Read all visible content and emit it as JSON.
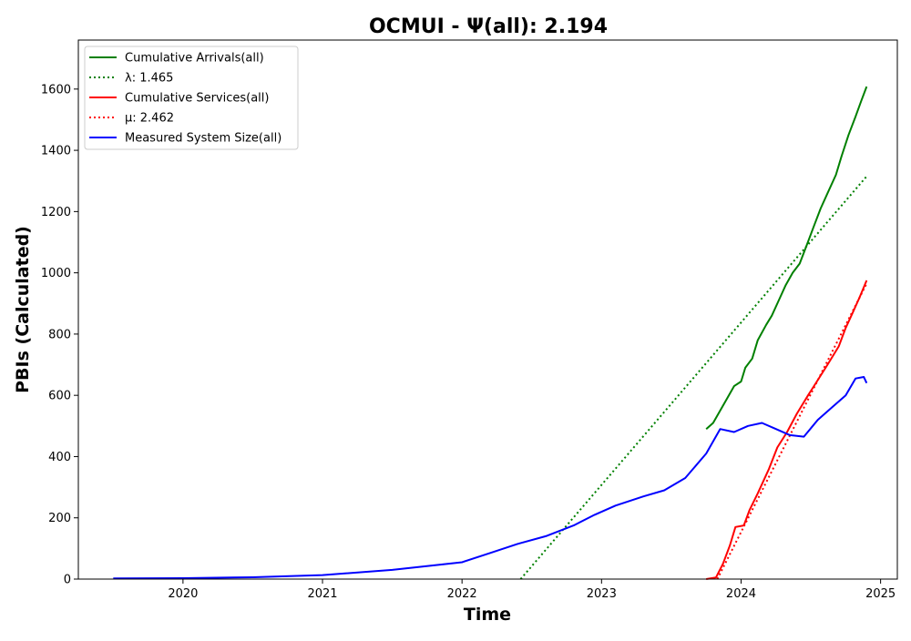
{
  "chart_data": {
    "type": "line",
    "title": "OCMUI -  Ψ(all): 2.194",
    "xlabel": "Time",
    "ylabel": "PBIs (Calculated)",
    "xlim": [
      2019.25,
      2025.12
    ],
    "ylim": [
      0,
      1760
    ],
    "x_ticks": [
      2020,
      2021,
      2022,
      2023,
      2024,
      2025
    ],
    "x_tick_labels": [
      "2020",
      "2021",
      "2022",
      "2023",
      "2024",
      "2025"
    ],
    "y_ticks": [
      0,
      200,
      400,
      600,
      800,
      1000,
      1200,
      1400,
      1600
    ],
    "y_tick_labels": [
      "0",
      "200",
      "400",
      "600",
      "800",
      "1000",
      "1200",
      "1400",
      "1600"
    ],
    "grid": false,
    "legend_position": "top-left",
    "series": [
      {
        "name": "Cumulative Arrivals(all)",
        "color": "#008000",
        "style": "solid",
        "points": [
          [
            2023.75,
            490
          ],
          [
            2023.8,
            510
          ],
          [
            2023.85,
            550
          ],
          [
            2023.9,
            590
          ],
          [
            2023.95,
            630
          ],
          [
            2024.0,
            645
          ],
          [
            2024.03,
            690
          ],
          [
            2024.08,
            720
          ],
          [
            2024.12,
            780
          ],
          [
            2024.18,
            830
          ],
          [
            2024.22,
            860
          ],
          [
            2024.28,
            920
          ],
          [
            2024.32,
            960
          ],
          [
            2024.37,
            1000
          ],
          [
            2024.42,
            1030
          ],
          [
            2024.47,
            1090
          ],
          [
            2024.52,
            1150
          ],
          [
            2024.57,
            1210
          ],
          [
            2024.62,
            1260
          ],
          [
            2024.68,
            1320
          ],
          [
            2024.72,
            1380
          ],
          [
            2024.77,
            1450
          ],
          [
            2024.82,
            1510
          ],
          [
            2024.86,
            1560
          ],
          [
            2024.9,
            1608
          ]
        ]
      },
      {
        "name": "λ: 1.465",
        "color": "#008000",
        "style": "dotted",
        "points": [
          [
            2022.42,
            0
          ],
          [
            2024.9,
            1315
          ]
        ]
      },
      {
        "name": "Cumulative Services(all)",
        "color": "#ff0000",
        "style": "solid",
        "points": [
          [
            2023.75,
            0
          ],
          [
            2023.82,
            5
          ],
          [
            2023.87,
            50
          ],
          [
            2023.92,
            110
          ],
          [
            2023.96,
            170
          ],
          [
            2024.02,
            175
          ],
          [
            2024.06,
            225
          ],
          [
            2024.12,
            280
          ],
          [
            2024.2,
            360
          ],
          [
            2024.26,
            430
          ],
          [
            2024.33,
            480
          ],
          [
            2024.4,
            540
          ],
          [
            2024.48,
            600
          ],
          [
            2024.55,
            650
          ],
          [
            2024.62,
            700
          ],
          [
            2024.7,
            760
          ],
          [
            2024.75,
            820
          ],
          [
            2024.8,
            870
          ],
          [
            2024.85,
            920
          ],
          [
            2024.9,
            975
          ]
        ]
      },
      {
        "name": "μ: 2.462",
        "color": "#ff0000",
        "style": "dotted",
        "points": [
          [
            2023.83,
            0
          ],
          [
            2024.9,
            965
          ]
        ]
      },
      {
        "name": "Measured System Size(all)",
        "color": "#0000ff",
        "style": "solid",
        "points": [
          [
            2019.5,
            2
          ],
          [
            2020.0,
            3
          ],
          [
            2020.5,
            6
          ],
          [
            2021.0,
            13
          ],
          [
            2021.5,
            30
          ],
          [
            2021.8,
            45
          ],
          [
            2022.0,
            55
          ],
          [
            2022.2,
            85
          ],
          [
            2022.4,
            115
          ],
          [
            2022.6,
            140
          ],
          [
            2022.8,
            175
          ],
          [
            2022.95,
            210
          ],
          [
            2023.1,
            240
          ],
          [
            2023.3,
            270
          ],
          [
            2023.45,
            290
          ],
          [
            2023.6,
            330
          ],
          [
            2023.75,
            410
          ],
          [
            2023.85,
            490
          ],
          [
            2023.95,
            480
          ],
          [
            2024.05,
            500
          ],
          [
            2024.15,
            510
          ],
          [
            2024.25,
            490
          ],
          [
            2024.35,
            470
          ],
          [
            2024.45,
            465
          ],
          [
            2024.55,
            520
          ],
          [
            2024.65,
            560
          ],
          [
            2024.75,
            600
          ],
          [
            2024.82,
            655
          ],
          [
            2024.88,
            660
          ],
          [
            2024.9,
            640
          ]
        ]
      }
    ]
  }
}
